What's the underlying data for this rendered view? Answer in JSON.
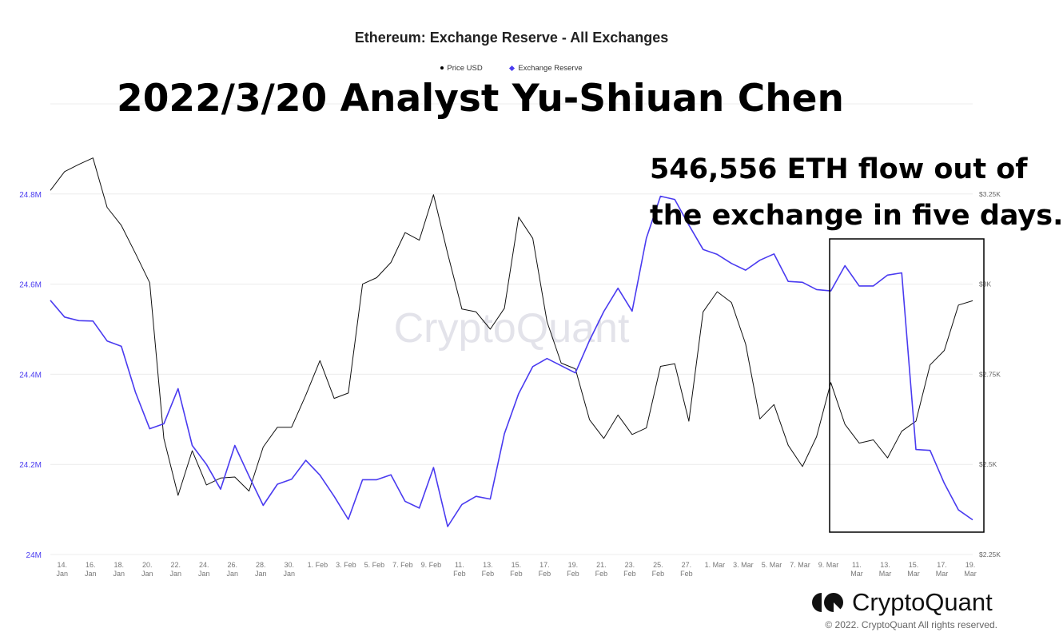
{
  "colors": {
    "price": "#111111",
    "reserve": "#4a3bf0",
    "grid": "#ececec",
    "watermark": "#e3e3ea"
  },
  "annotations": {
    "headline": "2022/3/20 Analyst Yu-Shiuan Chen",
    "callout_line1": "546,556 ETH flow out of",
    "callout_line2": "the exchange in five days."
  },
  "branding": {
    "logo_text": "CryptoQuant",
    "watermark": "CryptoQuant",
    "copyright": "© 2022. CryptoQuant All rights reserved."
  },
  "chart_data": {
    "type": "line",
    "title": "Ethereum: Exchange Reserve - All Exchanges",
    "legend": [
      "Price USD",
      "Exchange Reserve"
    ],
    "legend_position": "top",
    "grid": true,
    "x_start": "2022-01-13",
    "x_end": "2022-03-19",
    "x_tick_labels": [
      "14. Jan",
      "16. Jan",
      "18. Jan",
      "20. Jan",
      "22. Jan",
      "24. Jan",
      "26. Jan",
      "28. Jan",
      "30. Jan",
      "1. Feb",
      "3. Feb",
      "5. Feb",
      "7. Feb",
      "9. Feb",
      "11. Feb",
      "13. Feb",
      "15. Feb",
      "17. Feb",
      "19. Feb",
      "21. Feb",
      "23. Feb",
      "25. Feb",
      "27. Feb",
      "1. Mar",
      "3. Mar",
      "5. Mar",
      "7. Mar",
      "9. Mar",
      "11. Mar",
      "13. Mar",
      "15. Mar",
      "17. Mar",
      "19. Mar"
    ],
    "y_left": {
      "ticks": [
        "24M",
        "24.2M",
        "24.4M",
        "24.6M",
        "24.8M"
      ],
      "range": [
        24.0,
        25.0
      ],
      "unit": "M ETH"
    },
    "y_right": {
      "ticks": [
        "$2.25K",
        "$2.5K",
        "$2.75K",
        "$3K",
        "$3.25K"
      ],
      "range": [
        2250,
        3500
      ]
    },
    "series": [
      {
        "name": "Price USD",
        "axis": "right",
        "values": [
          3260,
          3312,
          3332,
          3350,
          3213,
          3163,
          3085,
          3004,
          2572,
          2414,
          2538,
          2443,
          2462,
          2465,
          2426,
          2548,
          2603,
          2603,
          2692,
          2788,
          2683,
          2698,
          3000,
          3018,
          3060,
          3143,
          3122,
          3248,
          3085,
          2931,
          2923,
          2875,
          2933,
          3186,
          3127,
          2896,
          2781,
          2765,
          2624,
          2572,
          2637,
          2583,
          2601,
          2772,
          2779,
          2620,
          2923,
          2979,
          2949,
          2834,
          2626,
          2666,
          2553,
          2494,
          2577,
          2727,
          2611,
          2559,
          2568,
          2518,
          2592,
          2620,
          2776,
          2816,
          2942,
          2954
        ]
      },
      {
        "name": "Exchange Reserve",
        "axis": "left",
        "values": [
          24.564,
          24.527,
          24.519,
          24.518,
          24.474,
          24.462,
          24.36,
          24.279,
          24.29,
          24.368,
          24.242,
          24.2,
          24.145,
          24.242,
          24.174,
          24.109,
          24.156,
          24.167,
          24.209,
          24.176,
          24.129,
          24.078,
          24.166,
          24.166,
          24.177,
          24.118,
          24.103,
          24.193,
          24.062,
          24.111,
          24.129,
          24.123,
          24.268,
          24.357,
          24.417,
          24.435,
          24.419,
          24.403,
          24.475,
          24.539,
          24.591,
          24.54,
          24.702,
          24.795,
          24.788,
          24.731,
          24.677,
          24.666,
          24.646,
          24.631,
          24.653,
          24.667,
          24.606,
          24.604,
          24.588,
          24.585,
          24.641,
          24.596,
          24.596,
          24.62,
          24.625,
          24.233,
          24.231,
          24.158,
          24.099,
          24.077
        ]
      }
    ],
    "highlight_range": [
      "2022-03-09",
      "2022-03-19"
    ]
  }
}
